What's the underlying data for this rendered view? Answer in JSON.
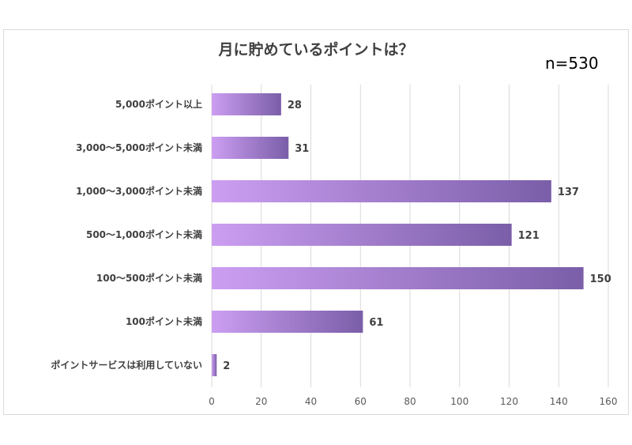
{
  "chart_data": {
    "type": "bar",
    "orientation": "horizontal",
    "title": "月に貯めているポイントは？",
    "annotation": "n=530",
    "categories": [
      "5,000ポイント以上",
      "3,000～5,000ポイント未満",
      "1,000～3,000ポイント未満",
      "500～1,000ポイント未満",
      "100～500ポイント未満",
      "100ポイント未満",
      "ポイントサービスは利用していない"
    ],
    "values": [
      28,
      31,
      137,
      121,
      150,
      61,
      2
    ],
    "xlim": [
      0,
      160
    ],
    "xticks": [
      0,
      20,
      40,
      60,
      80,
      100,
      120,
      140,
      160
    ],
    "grid": true,
    "colors": {
      "bar_start": "#cc9ef2",
      "bar_end": "#7a5ea8",
      "grid": "#d9d9d9"
    }
  }
}
